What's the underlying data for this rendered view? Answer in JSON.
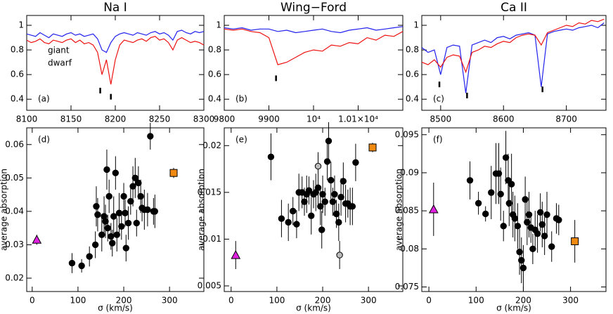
{
  "chart_data": [
    {
      "type": "line",
      "title": "Na I",
      "annotation": "(a)",
      "legend": "left",
      "xlim": [
        8100,
        8300
      ],
      "xticks": [
        8100,
        8150,
        8200,
        8250,
        8300
      ],
      "ylim": [
        0.31,
        1.08
      ],
      "yticks": [
        0.4,
        0.6,
        0.8,
        1
      ],
      "x": [
        8100,
        8105,
        8110,
        8115,
        8120,
        8125,
        8130,
        8135,
        8140,
        8145,
        8150,
        8155,
        8160,
        8165,
        8170,
        8175,
        8180,
        8185,
        8190,
        8195,
        8200,
        8205,
        8210,
        8215,
        8220,
        8225,
        8230,
        8235,
        8240,
        8245,
        8250,
        8255,
        8260,
        8265,
        8270,
        8275,
        8280,
        8285,
        8290,
        8295,
        8300
      ],
      "series": [
        {
          "name": "giant",
          "color": "#2222ee",
          "values": [
            0.93,
            0.92,
            0.91,
            0.94,
            0.92,
            0.9,
            0.93,
            0.92,
            0.91,
            0.93,
            0.94,
            0.92,
            0.93,
            0.91,
            0.92,
            0.93,
            0.89,
            0.8,
            0.78,
            0.86,
            0.91,
            0.93,
            0.94,
            0.93,
            0.92,
            0.94,
            0.93,
            0.92,
            0.94,
            0.95,
            0.93,
            0.94,
            0.92,
            0.88,
            0.95,
            0.96,
            0.94,
            0.93,
            0.95,
            0.94,
            0.95
          ]
        },
        {
          "name": "dwarf",
          "color": "#ee1111",
          "values": [
            0.88,
            0.86,
            0.87,
            0.89,
            0.86,
            0.85,
            0.88,
            0.87,
            0.86,
            0.88,
            0.89,
            0.86,
            0.88,
            0.85,
            0.86,
            0.84,
            0.78,
            0.6,
            0.72,
            0.52,
            0.72,
            0.84,
            0.88,
            0.87,
            0.86,
            0.88,
            0.89,
            0.87,
            0.9,
            0.91,
            0.88,
            0.89,
            0.86,
            0.8,
            0.88,
            0.9,
            0.88,
            0.86,
            0.87,
            0.86,
            0.84
          ]
        }
      ],
      "line_marks": {
        "x": [
          8183,
          8195
        ],
        "y": [
          0.47,
          0.42
        ]
      }
    },
    {
      "type": "line",
      "title": "Wing−Ford",
      "annotation": "(b)",
      "xlim": [
        9800,
        10200
      ],
      "xticks": [
        9800,
        9900,
        {
          "value": 10000,
          "label": "10⁴"
        },
        {
          "value": 10100,
          "label": "1.01×10⁴"
        }
      ],
      "ylim": [
        0.31,
        1.08
      ],
      "yticks": [
        0.4,
        0.6,
        0.8,
        1
      ],
      "x": [
        9800,
        9820,
        9840,
        9860,
        9880,
        9900,
        9920,
        9940,
        9960,
        9980,
        10000,
        10020,
        10040,
        10060,
        10080,
        10100,
        10120,
        10140,
        10160,
        10180,
        10200
      ],
      "series": [
        {
          "color": "#2222ee",
          "values": [
            0.98,
            0.97,
            0.98,
            0.96,
            0.97,
            0.97,
            0.95,
            0.96,
            0.94,
            0.95,
            0.96,
            0.97,
            0.95,
            0.94,
            0.96,
            0.97,
            0.98,
            0.96,
            0.97,
            0.98,
            0.99
          ]
        },
        {
          "color": "#ee1111",
          "values": [
            0.97,
            0.96,
            0.97,
            0.95,
            0.94,
            0.9,
            0.68,
            0.7,
            0.74,
            0.78,
            0.8,
            0.79,
            0.84,
            0.83,
            0.86,
            0.85,
            0.9,
            0.88,
            0.92,
            0.91,
            0.95
          ]
        }
      ],
      "line_marks": {
        "x": [
          9916
        ],
        "y": [
          0.57
        ]
      }
    },
    {
      "type": "line",
      "title": "Ca II",
      "annotation": "(c)",
      "xlim": [
        8470,
        8763
      ],
      "xticks": [
        8500,
        8600,
        8700
      ],
      "ylim": [
        0.31,
        1.08
      ],
      "yticks": [
        0.4,
        0.6,
        0.8,
        1
      ],
      "x": [
        8470,
        8480,
        8490,
        8500,
        8510,
        8520,
        8530,
        8540,
        8550,
        8560,
        8570,
        8580,
        8590,
        8600,
        8610,
        8620,
        8630,
        8640,
        8650,
        8660,
        8670,
        8680,
        8690,
        8700,
        8710,
        8720,
        8730,
        8740,
        8750,
        8760
      ],
      "series": [
        {
          "color": "#2222ee",
          "values": [
            0.82,
            0.78,
            0.8,
            0.6,
            0.82,
            0.84,
            0.83,
            0.45,
            0.84,
            0.86,
            0.88,
            0.86,
            0.9,
            0.91,
            0.89,
            0.92,
            0.93,
            0.94,
            0.92,
            0.5,
            0.93,
            0.95,
            0.96,
            0.97,
            0.96,
            0.98,
            0.99,
            1.0,
            0.98,
            1.02
          ]
        },
        {
          "color": "#ee1111",
          "values": [
            0.7,
            0.68,
            0.72,
            0.66,
            0.74,
            0.76,
            0.75,
            0.62,
            0.78,
            0.8,
            0.83,
            0.82,
            0.85,
            0.87,
            0.86,
            0.9,
            0.92,
            0.93,
            0.92,
            0.84,
            0.94,
            0.96,
            0.98,
            1.0,
            0.99,
            1.02,
            1.01,
            1.04,
            1.03,
            1.05
          ]
        }
      ],
      "line_marks": {
        "x": [
          8498,
          8542,
          8662
        ],
        "y": [
          0.52,
          0.43,
          0.48
        ]
      }
    },
    {
      "type": "scatter",
      "annotation": "(d)",
      "x_label": "σ (km/s)",
      "y_label": "average absorption",
      "xlim": [
        -12,
        375
      ],
      "xticks": [
        0,
        100,
        200,
        300
      ],
      "ylim": [
        0.016,
        0.065
      ],
      "yticks": [
        0.02,
        0.03,
        0.04,
        0.05,
        0.06
      ],
      "series": [
        {
          "marker": "circle",
          "color": "#000000",
          "x": [
            87,
            108,
            125,
            138,
            140,
            143,
            152,
            157,
            160,
            163,
            165,
            168,
            172,
            178,
            182,
            185,
            190,
            195,
            200,
            205,
            210,
            215,
            220,
            225,
            228,
            232,
            237,
            240,
            245,
            252,
            258,
            265,
            268,
            203,
            175
          ],
          "values": [
            0.0245,
            0.0237,
            0.0265,
            0.03,
            0.0415,
            0.039,
            0.033,
            0.0385,
            0.037,
            0.0525,
            0.035,
            0.0445,
            0.0325,
            0.0385,
            0.0515,
            0.033,
            0.0395,
            0.0355,
            0.0445,
            0.029,
            0.0365,
            0.043,
            0.0475,
            0.05,
            0.0365,
            0.0485,
            0.0445,
            0.041,
            0.0405,
            0.0405,
            0.0625,
            0.04,
            0.04,
            0.0395,
            0.0305
          ],
          "errors": [
            0.003,
            0.002,
            0.003,
            0.004,
            0.006,
            0.005,
            0.005,
            0.006,
            0.005,
            0.006,
            0.004,
            0.005,
            0.004,
            0.006,
            0.005,
            0.005,
            0.006,
            0.004,
            0.004,
            0.004,
            0.005,
            0.004,
            0.006,
            0.006,
            0.004,
            0.005,
            0.005,
            0.004,
            0.006,
            0.005,
            0.004,
            0.004,
            0.005,
            0.004,
            0.004
          ]
        },
        {
          "marker": "triangle",
          "color": "#e020e0",
          "x": [
            10
          ],
          "values": [
            0.0315
          ],
          "errors": [
            0.0015
          ]
        },
        {
          "marker": "square",
          "color": "#f08a10",
          "x": [
            309
          ],
          "values": [
            0.0515
          ],
          "errors": [
            0.0015
          ]
        }
      ]
    },
    {
      "type": "scatter",
      "annotation": "(e)",
      "x_label": "σ (km/s)",
      "y_label": "average absorption",
      "xlim": [
        -15,
        375
      ],
      "xticks": [
        0,
        100,
        200,
        300
      ],
      "ylim": [
        0.0044,
        0.0219
      ],
      "yticks": [
        0.005,
        0.01,
        0.015,
        0.02
      ],
      "series": [
        {
          "marker": "circle",
          "color": "#000000",
          "x": [
            87,
            110,
            125,
            135,
            143,
            148,
            155,
            160,
            165,
            170,
            175,
            180,
            185,
            190,
            195,
            200,
            205,
            210,
            213,
            218,
            222,
            226,
            230,
            235,
            240,
            245,
            250,
            255,
            260,
            265,
            272,
            198
          ],
          "values": [
            0.0188,
            0.0122,
            0.0118,
            0.013,
            0.0116,
            0.015,
            0.015,
            0.014,
            0.0148,
            0.0152,
            0.0125,
            0.0148,
            0.015,
            0.0155,
            0.0135,
            0.0148,
            0.014,
            0.0183,
            0.0205,
            0.0163,
            0.014,
            0.0148,
            0.0127,
            0.0118,
            0.0145,
            0.0162,
            0.0138,
            0.0138,
            0.0135,
            0.0135,
            0.0182,
            0.011
          ],
          "errors": [
            0.0025,
            0.002,
            0.002,
            0.0015,
            0.0015,
            0.002,
            0.0017,
            0.0015,
            0.002,
            0.0015,
            0.002,
            0.0015,
            0.002,
            0.002,
            0.002,
            0.002,
            0.0015,
            0.002,
            0.002,
            0.002,
            0.0015,
            0.002,
            0.0015,
            0.002,
            0.002,
            0.002,
            0.002,
            0.0015,
            0.002,
            0.002,
            0.002,
            0.002
          ]
        },
        {
          "marker": "circle",
          "color": "#bbbbbb",
          "x": [
            190,
            237
          ],
          "values": [
            0.0178,
            0.0083
          ],
          "errors": [
            0.0015,
            0.0015
          ]
        },
        {
          "marker": "triangle",
          "color": "#e020e0",
          "x": [
            10
          ],
          "values": [
            0.0083
          ],
          "errors": [
            0.0015
          ]
        },
        {
          "marker": "square",
          "color": "#f08a10",
          "x": [
            309
          ],
          "values": [
            0.0198
          ],
          "errors": [
            0.0005
          ]
        }
      ]
    },
    {
      "type": "scatter",
      "annotation": "(f)",
      "x_label": "σ (km/s)",
      "y_label": "average absorption",
      "xlim": [
        -15,
        375
      ],
      "xticks": [
        0,
        100,
        200,
        300
      ],
      "ylim": [
        0.0744,
        0.0959
      ],
      "yticks": [
        0.075,
        0.08,
        0.085,
        0.09,
        0.095
      ],
      "series": [
        {
          "marker": "circle",
          "color": "#000000",
          "x": [
            87,
            105,
            120,
            132,
            142,
            148,
            152,
            158,
            163,
            168,
            170,
            175,
            178,
            182,
            188,
            192,
            196,
            200,
            204,
            208,
            212,
            216,
            220,
            225,
            230,
            236,
            240,
            245,
            250,
            260,
            270,
            275
          ],
          "values": [
            0.089,
            0.086,
            0.0846,
            0.0874,
            0.0899,
            0.0899,
            0.0872,
            0.083,
            0.092,
            0.089,
            0.086,
            0.0885,
            0.0845,
            0.084,
            0.083,
            0.0796,
            0.0785,
            0.0775,
            0.0865,
            0.0835,
            0.0845,
            0.0828,
            0.08,
            0.0825,
            0.082,
            0.0848,
            0.0832,
            0.0817,
            0.0845,
            0.0803,
            0.084,
            0.0838
          ],
          "errors": [
            0.0025,
            0.0015,
            0.001,
            0.0035,
            0.004,
            0.004,
            0.0035,
            0.002,
            0.0035,
            0.0035,
            0.003,
            0.004,
            0.003,
            0.003,
            0.003,
            0.003,
            0.003,
            0.003,
            0.003,
            0.003,
            0.003,
            0.002,
            0.002,
            0.0025,
            0.0025,
            0.0025,
            0.003,
            0.0025,
            0.003,
            0.002,
            0.002,
            0.002
          ]
        },
        {
          "marker": "triangle",
          "color": "#e020e0",
          "x": [
            10
          ],
          "values": [
            0.0852
          ],
          "errors": [
            0.0035
          ]
        },
        {
          "marker": "square",
          "color": "#f08a10",
          "x": [
            309
          ],
          "values": [
            0.081
          ],
          "errors": [
            0.0028
          ]
        }
      ]
    }
  ]
}
